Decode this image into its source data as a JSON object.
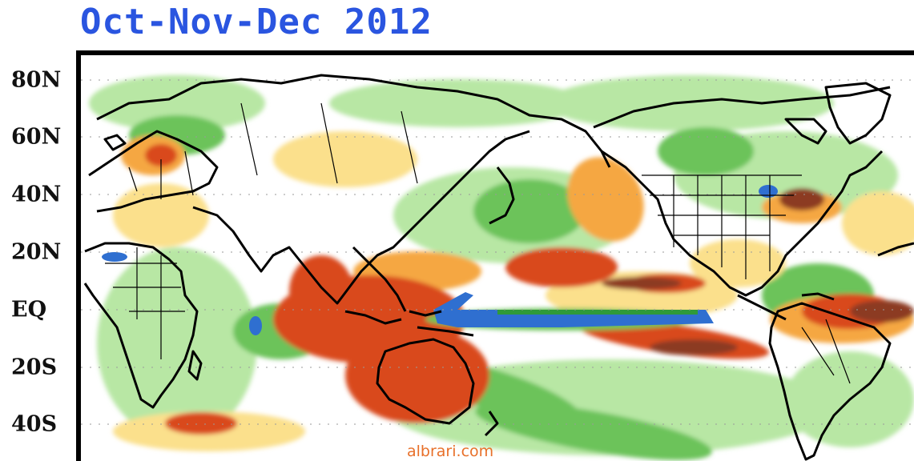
{
  "title": "Oct-Nov-Dec 2012",
  "latitude_labels": [
    "80N",
    "60N",
    "40N",
    "20N",
    "EQ",
    "20S",
    "40S"
  ],
  "watermark": "albrari.com",
  "colors": {
    "title": "#2a55e0",
    "strong_wet_blue": "#2f6fd0",
    "wet_green_dark": "#2f9a3a",
    "wet_green_mid": "#6cc35a",
    "wet_green_light": "#b8e7a4",
    "dry_yellow": "#fbe08c",
    "dry_orange": "#f5a742",
    "dry_red": "#d9481c",
    "dry_brown": "#8c3a22"
  }
}
